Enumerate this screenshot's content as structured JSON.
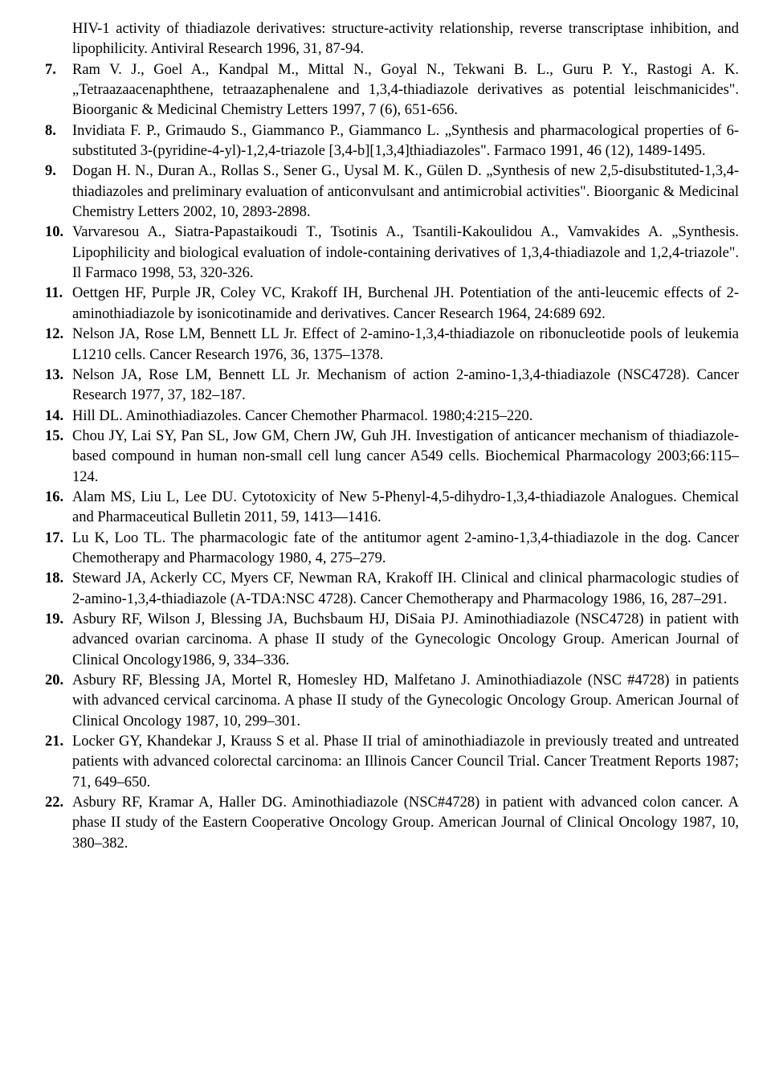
{
  "continuation": "HIV-1 activity of thiadiazole derivatives: structure-activity relationship, reverse transcriptase inhibition, and lipophilicity. Antiviral Research 1996, 31, 87-94.",
  "refs": [
    "Ram V. J., Goel A., Kandpal M., Mittal N., Goyal N., Tekwani B. L., Guru P. Y., Rastogi A. K. „Tetraazaacenaphthene, tetraazaphenalene and 1,3,4-thiadiazole derivatives as potential leischmanicides\". Bioorganic & Medicinal Chemistry Letters 1997, 7 (6), 651-656.",
    "Invidiata F. P., Grimaudo S., Giammanco P., Giammanco L. „Synthesis and pharmacological properties of 6-substituted 3-(pyridine-4-yl)-1,2,4-triazole [3,4-b][1,3,4]thiadiazoles\". Farmaco 1991, 46 (12), 1489-1495.",
    "Dogan H. N., Duran A., Rollas S., Sener G., Uysal M. K., Gülen D. „Synthesis of new 2,5-disubstituted-1,3,4-thiadiazoles and preliminary evaluation of anticonvulsant and antimicrobial activities\". Bioorganic & Medicinal Chemistry Letters 2002, 10, 2893-2898.",
    "Varvaresou A., Siatra-Papastaikoudi T., Tsotinis A., Tsantili-Kakoulidou A., Vamvakides A. „Synthesis. Lipophilicity and biological evaluation of indole-containing derivatives of 1,3,4-thiadiazole and 1,2,4-triazole\". Il Farmaco 1998, 53, 320-326.",
    "Oettgen HF, Purple JR, Coley VC, Krakoff IH, Burchenal JH. Potentiation of the anti-leucemic effects of 2-aminothiadiazole by isonicotinamide and derivatives. Cancer Research 1964, 24:689 692.",
    "Nelson JA, Rose LM, Bennett LL Jr. Effect of 2-amino-1,3,4-thiadiazole on ribonucleotide pools of leukemia L1210 cells. Cancer Research 1976, 36, 1375–1378.",
    "Nelson JA, Rose LM, Bennett LL Jr. Mechanism of action 2-amino-1,3,4-thiadiazole (NSC4728). Cancer Research 1977, 37, 182–187.",
    "Hill DL. Aminothiadiazoles. Cancer Chemother Pharmacol. 1980;4:215–220.",
    "Chou JY, Lai SY, Pan SL, Jow GM, Chern JW, Guh JH. Investigation of anticancer mechanism of thiadiazole-based compound in human non-small cell lung cancer A549 cells. Biochemical Pharmacology 2003;66:115–124.",
    "Alam MS, Liu L, Lee DU. Cytotoxicity of New 5-Phenyl-4,5-dihydro-1,3,4-thiadiazole Analogues. Chemical and Pharmaceutical Bulletin 2011, 59, 1413—1416.",
    "Lu K, Loo TL. The pharmacologic fate of the antitumor agent 2-amino-1,3,4-thiadiazole in the dog. Cancer Chemotherapy and Pharmacology 1980, 4, 275–279.",
    "Steward JA, Ackerly CC, Myers CF, Newman RA, Krakoff IH. Clinical and clinical pharmacologic studies of 2-amino-1,3,4-thiadiazole (A-TDA:NSC 4728). Cancer Chemotherapy and Pharmacology 1986, 16, 287–291.",
    "Asbury RF, Wilson J, Blessing JA, Buchsbaum HJ, DiSaia PJ. Aminothiadiazole (NSC4728) in patient with advanced ovarian carcinoma. A phase II study of the Gynecologic Oncology Group. American Journal of Clinical Oncology1986, 9, 334–336.",
    "Asbury RF, Blessing JA, Mortel R, Homesley HD, Malfetano J. Aminothiadiazole (NSC #4728) in patients with advanced cervical carcinoma. A phase II study of the Gynecologic Oncology Group. American Journal of Clinical Oncology 1987, 10, 299–301.",
    "Locker GY, Khandekar J, Krauss S et al. Phase II trial of aminothiadiazole in previously treated and untreated patients with advanced colorectal carcinoma: an Illinois Cancer Council Trial. Cancer Treatment Reports 1987; 71, 649–650.",
    "Asbury RF, Kramar A, Haller DG. Aminothiadiazole (NSC#4728) in patient with advanced colon cancer. A phase II study of the Eastern Cooperative Oncology Group. American Journal of Clinical Oncology 1987, 10, 380–382."
  ]
}
